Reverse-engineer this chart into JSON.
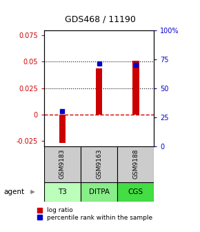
{
  "title": "GDS468 / 11190",
  "samples": [
    "GSM9183",
    "GSM9163",
    "GSM9188"
  ],
  "agents": [
    "T3",
    "DITPA",
    "CGS"
  ],
  "log_ratios": [
    -0.027,
    0.044,
    0.051
  ],
  "percentile_ranks": [
    0.3,
    0.71,
    0.7
  ],
  "ylim_left": [
    -0.03,
    0.08
  ],
  "ylim_right": [
    0.0,
    1.0
  ],
  "yticks_left": [
    -0.025,
    0.0,
    0.025,
    0.05,
    0.075
  ],
  "yticks_right": [
    0.0,
    0.25,
    0.5,
    0.75,
    1.0
  ],
  "ytick_labels_left": [
    "-0.025",
    "0",
    "0.025",
    "0.05",
    "0.075"
  ],
  "ytick_labels_right": [
    "0",
    "25",
    "50",
    "75",
    "100%"
  ],
  "dotted_lines": [
    0.025,
    0.05
  ],
  "bar_color": "#cc0000",
  "dot_color": "#0000cc",
  "zero_line_color": "#cc0000",
  "agent_colors": [
    "#bbffbb",
    "#88ee88",
    "#44dd44"
  ],
  "sample_box_color": "#cccccc",
  "bar_width": 0.18,
  "agent_label": "agent",
  "legend_log_ratio": "log ratio",
  "legend_percentile": "percentile rank within the sample"
}
